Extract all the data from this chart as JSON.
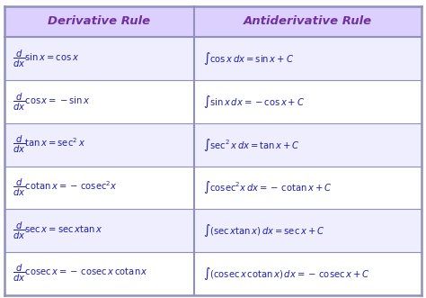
{
  "title_left": "Derivative Rule",
  "title_right": "Antiderivative Rule",
  "header_bg": "#dcd0ff",
  "header_text_color": "#7030a0",
  "row_bg_even": "#eeeeff",
  "row_bg_odd": "#ffffff",
  "border_color": "#9090bb",
  "text_color": "#2020aa",
  "rows_left": [
    "$\\dfrac{d}{dx}\\sin x = \\cos x$",
    "$\\dfrac{d}{dx}\\cos x = -\\sin x$",
    "$\\dfrac{d}{dx}\\tan x = \\sec^{2}x$",
    "$\\dfrac{d}{dx}\\mathrm{cotan}\\, x = -\\,\\mathrm{cosec}^{2}x$",
    "$\\dfrac{d}{dx}\\sec x = \\sec x\\tan x$",
    "$\\dfrac{d}{dx}\\mathrm{cosec}\\, x = -\\,\\mathrm{cosec}\\, x\\,\\mathrm{cotan}\\, x$"
  ],
  "rows_right": [
    "$\\int \\cos x\\, dx = \\sin x + C$",
    "$\\int \\sin x\\, dx = -\\cos x + C$",
    "$\\int \\sec^{2}x\\, dx = \\tan x + C$",
    "$\\int \\mathrm{cosec}^{2}x\\, dx = -\\,\\mathrm{cotan}\\, x + C$",
    "$\\int (\\sec x\\tan x)\\,dx = \\sec x + C$",
    "$\\int (\\mathrm{cosec}\\, x\\,\\mathrm{cotan}\\, x)\\,dx = -\\,\\mathrm{cosec}\\, x + C$"
  ],
  "figsize": [
    4.74,
    3.31
  ],
  "dpi": 100
}
